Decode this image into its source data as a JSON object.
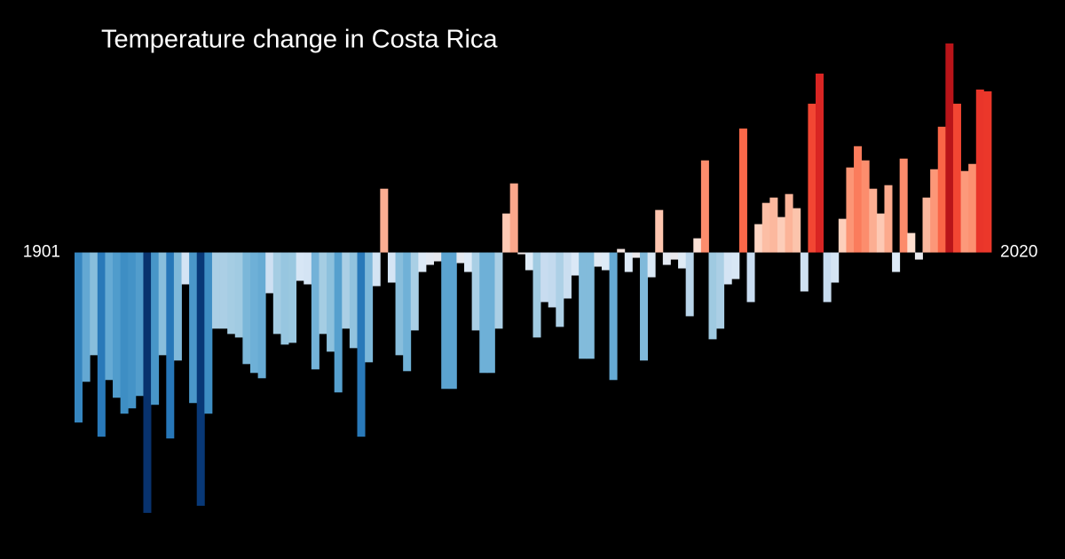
{
  "chart_data": {
    "type": "bar",
    "title": "Temperature change in Costa Rica",
    "categories": [
      "1901",
      null,
      null,
      null,
      null,
      null,
      null,
      null,
      null,
      null,
      null,
      null,
      null,
      null,
      null,
      null,
      null,
      null,
      null,
      null,
      null,
      null,
      null,
      null,
      null,
      null,
      null,
      null,
      null,
      null,
      null,
      null,
      null,
      null,
      null,
      null,
      null,
      null,
      null,
      null,
      null,
      null,
      null,
      null,
      null,
      null,
      null,
      null,
      null,
      null,
      null,
      null,
      null,
      null,
      null,
      null,
      null,
      null,
      null,
      null,
      null,
      null,
      null,
      null,
      null,
      null,
      null,
      null,
      null,
      null,
      null,
      null,
      null,
      null,
      null,
      null,
      null,
      null,
      null,
      null,
      null,
      null,
      null,
      null,
      null,
      null,
      null,
      null,
      null,
      null,
      null,
      null,
      null,
      null,
      null,
      null,
      null,
      null,
      null,
      null,
      null,
      null,
      null,
      null,
      null,
      null,
      null,
      null,
      null,
      null,
      null,
      null,
      null,
      null,
      null,
      null,
      null,
      null,
      null,
      "2020"
    ],
    "values": [
      -0.96,
      -0.73,
      -0.58,
      -1.04,
      -0.72,
      -0.82,
      -0.91,
      -0.88,
      -0.81,
      -1.47,
      -0.86,
      -0.58,
      -1.05,
      -0.61,
      -0.18,
      -0.85,
      -1.43,
      -0.91,
      -0.43,
      -0.43,
      -0.46,
      -0.48,
      -0.63,
      -0.68,
      -0.71,
      -0.23,
      -0.46,
      -0.52,
      -0.51,
      -0.16,
      -0.18,
      -0.66,
      -0.46,
      -0.56,
      -0.79,
      -0.43,
      -0.54,
      -1.04,
      -0.62,
      -0.19,
      0.36,
      -0.17,
      -0.58,
      -0.67,
      -0.44,
      -0.11,
      -0.07,
      -0.05,
      -0.77,
      -0.77,
      -0.06,
      -0.11,
      -0.44,
      -0.68,
      -0.68,
      -0.43,
      0.22,
      0.39,
      -0.01,
      -0.1,
      -0.48,
      -0.28,
      -0.31,
      -0.42,
      -0.26,
      -0.13,
      -0.6,
      -0.6,
      -0.08,
      -0.1,
      -0.72,
      0.02,
      -0.11,
      -0.03,
      -0.61,
      -0.14,
      0.24,
      -0.07,
      -0.04,
      -0.09,
      -0.36,
      0.08,
      0.52,
      -0.49,
      -0.43,
      -0.18,
      -0.15,
      0.7,
      -0.28,
      0.16,
      0.28,
      0.31,
      0.2,
      0.33,
      0.25,
      -0.22,
      0.84,
      1.01,
      -0.28,
      -0.17,
      0.19,
      0.48,
      0.6,
      0.52,
      0.36,
      0.22,
      0.38,
      -0.11,
      0.53,
      0.11,
      -0.04,
      0.31,
      0.47,
      0.71,
      1.18,
      0.84,
      0.46,
      0.5,
      0.92,
      0.91
    ],
    "ylim": [
      -1.48,
      1.2
    ],
    "colormap": [
      "#08306b",
      "#08519c",
      "#2171b5",
      "#4292c6",
      "#6baed6",
      "#9ecae1",
      "#c6dbef",
      "#deebf7",
      "#fee0d2",
      "#fcbba1",
      "#fc9272",
      "#fb6a4a",
      "#ef3b2c",
      "#cb181d",
      "#a50f15",
      "#67000d"
    ]
  }
}
